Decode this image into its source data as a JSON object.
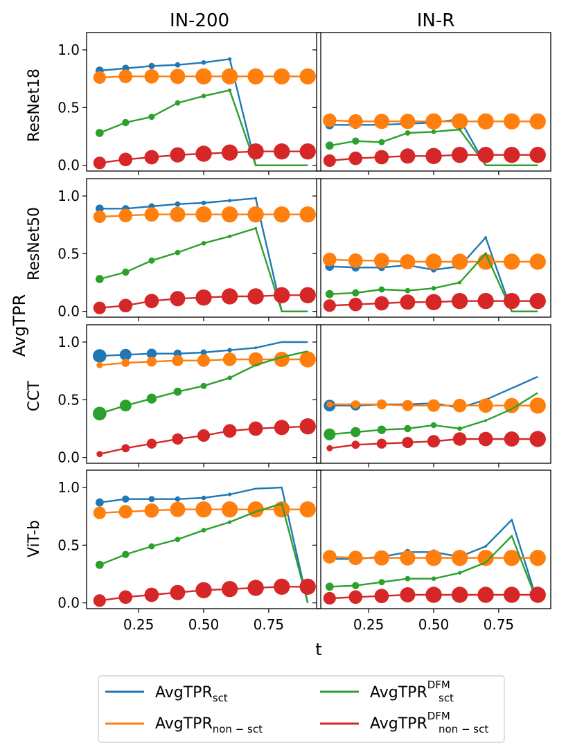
{
  "chart_data": {
    "type": "line",
    "xlabel": "t",
    "ylabel": "AvgTPR",
    "columns": [
      "IN-200",
      "IN-R"
    ],
    "rows": [
      "ResNet18",
      "ResNet50",
      "CCT",
      "ViT-b"
    ],
    "xlim": [
      0.05,
      0.95
    ],
    "ylim": [
      -0.05,
      1.15
    ],
    "xticks": [
      0.25,
      0.5,
      0.75
    ],
    "xtick_labels": [
      "0.25",
      "0.50",
      "0.75"
    ],
    "yticks": [
      0.0,
      0.5,
      1.0
    ],
    "ytick_labels": [
      "0.0",
      "0.5",
      "1.0"
    ],
    "x": [
      0.1,
      0.2,
      0.3,
      0.4,
      0.5,
      0.6,
      0.7,
      0.8,
      0.9
    ],
    "series_meta": [
      {
        "key": "sct",
        "name": "AvgTPR",
        "sub": "sct",
        "sup": "",
        "color": "#1f77b4"
      },
      {
        "key": "nonsct",
        "name": "AvgTPR",
        "sub": "non − sct",
        "sup": "",
        "color": "#ff7f0e"
      },
      {
        "key": "sct_dfm",
        "name": "AvgTPR",
        "sub": "sct",
        "sup": "DFM",
        "color": "#2ca02c"
      },
      {
        "key": "nonsct_dfm",
        "name": "AvgTPR",
        "sub": "non − sct",
        "sup": "DFM",
        "color": "#d62728"
      }
    ],
    "legend_order": [
      "sct",
      "nonsct",
      "sct_dfm",
      "nonsct_dfm"
    ],
    "legend_position": "bottom-center",
    "panels": [
      {
        "row": "ResNet18",
        "column": "IN-200",
        "series": {
          "sct": {
            "values": [
              0.82,
              0.84,
              0.86,
              0.87,
              0.89,
              0.92,
              0.0,
              0.0,
              0.0
            ],
            "sizes": [
              0.45,
              0.4,
              0.35,
              0.3,
              0.25,
              0.2,
              0,
              0,
              0
            ]
          },
          "nonsct": {
            "values": [
              0.76,
              0.77,
              0.77,
              0.77,
              0.77,
              0.77,
              0.77,
              0.77,
              0.77
            ],
            "sizes": [
              0.7,
              0.75,
              0.8,
              0.85,
              0.9,
              0.9,
              0.9,
              0.9,
              0.9
            ]
          },
          "sct_dfm": {
            "values": [
              0.28,
              0.37,
              0.42,
              0.54,
              0.6,
              0.65,
              0.0,
              0.0,
              0.0
            ],
            "sizes": [
              0.45,
              0.4,
              0.35,
              0.3,
              0.25,
              0.2,
              0,
              0,
              0
            ]
          },
          "nonsct_dfm": {
            "values": [
              0.02,
              0.05,
              0.07,
              0.09,
              0.1,
              0.11,
              0.12,
              0.12,
              0.12
            ],
            "sizes": [
              0.7,
              0.75,
              0.8,
              0.85,
              0.9,
              0.9,
              0.9,
              0.9,
              0.9
            ]
          }
        }
      },
      {
        "row": "ResNet18",
        "column": "IN-R",
        "series": {
          "sct": {
            "values": [
              0.35,
              0.35,
              0.35,
              0.36,
              0.37,
              0.4,
              0.0,
              0.0,
              0.0
            ],
            "sizes": [
              0.5,
              0.45,
              0.4,
              0.35,
              0.3,
              0.25,
              0,
              0,
              0
            ]
          },
          "nonsct": {
            "values": [
              0.39,
              0.38,
              0.38,
              0.38,
              0.38,
              0.38,
              0.38,
              0.38,
              0.38
            ],
            "sizes": [
              0.75,
              0.8,
              0.85,
              0.85,
              0.9,
              0.9,
              0.9,
              0.9,
              0.9
            ]
          },
          "sct_dfm": {
            "values": [
              0.17,
              0.21,
              0.2,
              0.28,
              0.29,
              0.31,
              0.0,
              0.0,
              0.0
            ],
            "sizes": [
              0.45,
              0.4,
              0.35,
              0.3,
              0.25,
              0.2,
              0,
              0,
              0
            ]
          },
          "nonsct_dfm": {
            "values": [
              0.04,
              0.06,
              0.07,
              0.08,
              0.08,
              0.09,
              0.09,
              0.09,
              0.09
            ],
            "sizes": [
              0.7,
              0.75,
              0.8,
              0.85,
              0.9,
              0.9,
              0.9,
              0.9,
              0.9
            ]
          }
        }
      },
      {
        "row": "ResNet50",
        "column": "IN-200",
        "series": {
          "sct": {
            "values": [
              0.89,
              0.89,
              0.91,
              0.93,
              0.94,
              0.96,
              0.98,
              0.0,
              0.0
            ],
            "sizes": [
              0.45,
              0.4,
              0.35,
              0.3,
              0.25,
              0.2,
              0.15,
              0,
              0
            ]
          },
          "nonsct": {
            "values": [
              0.82,
              0.83,
              0.84,
              0.84,
              0.84,
              0.84,
              0.84,
              0.84,
              0.84
            ],
            "sizes": [
              0.7,
              0.75,
              0.8,
              0.85,
              0.9,
              0.9,
              0.9,
              0.9,
              0.9
            ]
          },
          "sct_dfm": {
            "values": [
              0.28,
              0.34,
              0.44,
              0.51,
              0.59,
              0.65,
              0.72,
              0.0,
              0.0
            ],
            "sizes": [
              0.45,
              0.4,
              0.35,
              0.3,
              0.25,
              0.2,
              0.15,
              0,
              0
            ]
          },
          "nonsct_dfm": {
            "values": [
              0.03,
              0.05,
              0.09,
              0.11,
              0.12,
              0.13,
              0.13,
              0.14,
              0.14
            ],
            "sizes": [
              0.7,
              0.75,
              0.8,
              0.85,
              0.9,
              0.9,
              0.9,
              0.9,
              0.9
            ]
          }
        }
      },
      {
        "row": "ResNet50",
        "column": "IN-R",
        "series": {
          "sct": {
            "values": [
              0.39,
              0.38,
              0.38,
              0.4,
              0.36,
              0.39,
              0.64,
              0.0,
              0.0
            ],
            "sizes": [
              0.5,
              0.45,
              0.4,
              0.35,
              0.3,
              0.25,
              0.15,
              0,
              0
            ]
          },
          "nonsct": {
            "values": [
              0.45,
              0.44,
              0.44,
              0.43,
              0.43,
              0.43,
              0.43,
              0.43,
              0.43
            ],
            "sizes": [
              0.75,
              0.8,
              0.85,
              0.85,
              0.9,
              0.9,
              0.9,
              0.9,
              0.9
            ]
          },
          "sct_dfm": {
            "values": [
              0.15,
              0.16,
              0.19,
              0.18,
              0.2,
              0.25,
              0.5,
              0.0,
              0.0
            ],
            "sizes": [
              0.45,
              0.4,
              0.35,
              0.3,
              0.25,
              0.2,
              0.15,
              0,
              0
            ]
          },
          "nonsct_dfm": {
            "values": [
              0.05,
              0.06,
              0.07,
              0.08,
              0.08,
              0.09,
              0.09,
              0.09,
              0.09
            ],
            "sizes": [
              0.7,
              0.75,
              0.8,
              0.85,
              0.9,
              0.9,
              0.9,
              0.9,
              0.9
            ]
          }
        }
      },
      {
        "row": "CCT",
        "column": "IN-200",
        "series": {
          "sct": {
            "values": [
              0.88,
              0.89,
              0.9,
              0.9,
              0.91,
              0.93,
              0.95,
              1.0,
              1.0
            ],
            "sizes": [
              0.75,
              0.65,
              0.55,
              0.45,
              0.35,
              0.25,
              0.15,
              0.05,
              0.0
            ]
          },
          "nonsct": {
            "values": [
              0.8,
              0.82,
              0.83,
              0.84,
              0.84,
              0.85,
              0.85,
              0.85,
              0.85
            ],
            "sizes": [
              0.35,
              0.45,
              0.55,
              0.62,
              0.7,
              0.75,
              0.8,
              0.85,
              0.9
            ]
          },
          "sct_dfm": {
            "values": [
              0.38,
              0.45,
              0.51,
              0.57,
              0.62,
              0.69,
              0.8,
              0.87,
              0.92
            ],
            "sizes": [
              0.75,
              0.65,
              0.55,
              0.45,
              0.35,
              0.25,
              0.15,
              0.05,
              0.0
            ]
          },
          "nonsct_dfm": {
            "values": [
              0.03,
              0.08,
              0.12,
              0.16,
              0.19,
              0.23,
              0.25,
              0.26,
              0.27
            ],
            "sizes": [
              0.35,
              0.45,
              0.55,
              0.62,
              0.7,
              0.75,
              0.8,
              0.85,
              0.9
            ]
          }
        }
      },
      {
        "row": "CCT",
        "column": "IN-R",
        "series": {
          "sct": {
            "values": [
              0.45,
              0.45,
              0.46,
              0.46,
              0.47,
              0.43,
              0.5,
              0.6,
              0.7
            ],
            "sizes": [
              0.65,
              0.55,
              0.48,
              0.4,
              0.32,
              0.25,
              0.15,
              0.05,
              0.0
            ]
          },
          "nonsct": {
            "values": [
              0.46,
              0.46,
              0.46,
              0.45,
              0.45,
              0.45,
              0.45,
              0.45,
              0.45
            ],
            "sizes": [
              0.35,
              0.45,
              0.55,
              0.62,
              0.7,
              0.75,
              0.8,
              0.85,
              0.9
            ]
          },
          "sct_dfm": {
            "values": [
              0.2,
              0.22,
              0.24,
              0.25,
              0.28,
              0.25,
              0.32,
              0.42,
              0.56
            ],
            "sizes": [
              0.65,
              0.55,
              0.48,
              0.4,
              0.32,
              0.25,
              0.15,
              0.05,
              0.0
            ]
          },
          "nonsct_dfm": {
            "values": [
              0.08,
              0.11,
              0.12,
              0.13,
              0.14,
              0.16,
              0.16,
              0.16,
              0.16
            ],
            "sizes": [
              0.35,
              0.45,
              0.55,
              0.62,
              0.7,
              0.75,
              0.8,
              0.85,
              0.9
            ]
          }
        }
      },
      {
        "row": "ViT-b",
        "column": "IN-200",
        "series": {
          "sct": {
            "values": [
              0.87,
              0.9,
              0.9,
              0.9,
              0.91,
              0.94,
              0.99,
              1.0,
              0.0
            ],
            "sizes": [
              0.45,
              0.4,
              0.35,
              0.3,
              0.25,
              0.2,
              0.1,
              0.05,
              0
            ]
          },
          "nonsct": {
            "values": [
              0.78,
              0.79,
              0.8,
              0.81,
              0.81,
              0.81,
              0.81,
              0.81,
              0.81
            ],
            "sizes": [
              0.7,
              0.75,
              0.8,
              0.85,
              0.9,
              0.9,
              0.9,
              0.9,
              0.9
            ]
          },
          "sct_dfm": {
            "values": [
              0.33,
              0.42,
              0.49,
              0.55,
              0.63,
              0.7,
              0.79,
              0.86,
              0.0
            ],
            "sizes": [
              0.45,
              0.4,
              0.35,
              0.3,
              0.25,
              0.2,
              0.1,
              0.05,
              0
            ]
          },
          "nonsct_dfm": {
            "values": [
              0.02,
              0.05,
              0.07,
              0.09,
              0.11,
              0.12,
              0.13,
              0.14,
              0.14
            ],
            "sizes": [
              0.7,
              0.75,
              0.8,
              0.85,
              0.9,
              0.9,
              0.9,
              0.9,
              0.9
            ]
          }
        }
      },
      {
        "row": "ViT-b",
        "column": "IN-R",
        "series": {
          "sct": {
            "values": [
              0.38,
              0.38,
              0.4,
              0.44,
              0.44,
              0.4,
              0.49,
              0.72,
              0.0
            ],
            "sizes": [
              0.5,
              0.45,
              0.4,
              0.35,
              0.3,
              0.25,
              0.15,
              0.05,
              0
            ]
          },
          "nonsct": {
            "values": [
              0.4,
              0.39,
              0.39,
              0.39,
              0.39,
              0.39,
              0.39,
              0.39,
              0.39
            ],
            "sizes": [
              0.75,
              0.8,
              0.85,
              0.85,
              0.9,
              0.9,
              0.9,
              0.9,
              0.9
            ]
          },
          "sct_dfm": {
            "values": [
              0.14,
              0.15,
              0.18,
              0.21,
              0.21,
              0.26,
              0.35,
              0.58,
              0.0
            ],
            "sizes": [
              0.45,
              0.4,
              0.35,
              0.3,
              0.25,
              0.2,
              0.1,
              0.05,
              0
            ]
          },
          "nonsct_dfm": {
            "values": [
              0.04,
              0.05,
              0.06,
              0.07,
              0.07,
              0.07,
              0.07,
              0.07,
              0.07
            ],
            "sizes": [
              0.7,
              0.75,
              0.8,
              0.85,
              0.9,
              0.9,
              0.9,
              0.9,
              0.9
            ]
          }
        }
      }
    ]
  }
}
